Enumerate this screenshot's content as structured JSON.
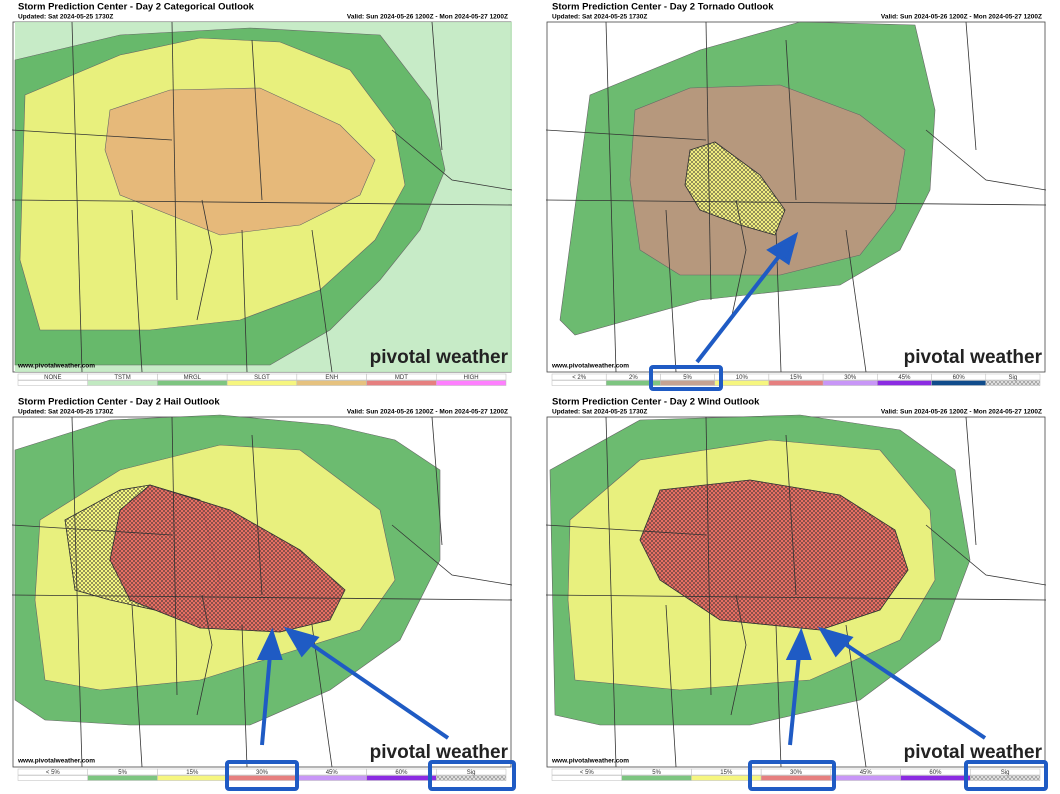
{
  "panels": [
    {
      "title": "Storm Prediction Center - Day 2 Categorical Outlook",
      "updated": "Updated: Sat 2024-05-25 1730Z",
      "valid": "Valid: Sun 2024-05-26 1200Z - Mon 2024-05-27 1200Z",
      "website": "www.pivotalweather.com",
      "watermark": "pivotal weather",
      "legend": [
        {
          "label": "NONE",
          "color": "#ffffff"
        },
        {
          "label": "TSTM",
          "color": "#c1e9c1"
        },
        {
          "label": "MRGL",
          "color": "#7dc580"
        },
        {
          "label": "SLGT",
          "color": "#f6f67f"
        },
        {
          "label": "ENH",
          "color": "#e6c27f"
        },
        {
          "label": "MDT",
          "color": "#e67f7f"
        },
        {
          "label": "HIGH",
          "color": "#fe7ffe"
        }
      ]
    },
    {
      "title": "Storm Prediction Center - Day 2 Tornado Outlook",
      "updated": "Updated: Sat 2024-05-25 1730Z",
      "valid": "Valid: Sun 2024-05-26 1200Z - Mon 2024-05-27 1200Z",
      "website": "www.pivotalweather.com",
      "watermark": "pivotal weather",
      "legend": [
        {
          "label": "< 2%",
          "color": "#ffffff"
        },
        {
          "label": "2%",
          "color": "#7dc580"
        },
        {
          "label": "5%",
          "color": "#c5a393"
        },
        {
          "label": "10%",
          "color": "#f6f67f"
        },
        {
          "label": "15%",
          "color": "#e67f7f"
        },
        {
          "label": "30%",
          "color": "#c896f7"
        },
        {
          "label": "45%",
          "color": "#8b2be2"
        },
        {
          "label": "60%",
          "color": "#104c8c"
        },
        {
          "label": "Sig",
          "color": "hatch"
        }
      ]
    },
    {
      "title": "Storm Prediction Center - Day 2 Hail Outlook",
      "updated": "Updated: Sat 2024-05-25 1730Z",
      "valid": "Valid: Sun 2024-05-26 1200Z - Mon 2024-05-27 1200Z",
      "website": "www.pivotalweather.com",
      "watermark": "pivotal weather",
      "legend": [
        {
          "label": "< 5%",
          "color": "#ffffff"
        },
        {
          "label": "5%",
          "color": "#7dc580"
        },
        {
          "label": "15%",
          "color": "#f6f67f"
        },
        {
          "label": "30%",
          "color": "#e67f7f"
        },
        {
          "label": "45%",
          "color": "#c896f7"
        },
        {
          "label": "60%",
          "color": "#8b2be2"
        },
        {
          "label": "Sig",
          "color": "hatch"
        }
      ]
    },
    {
      "title": "Storm Prediction Center - Day 2 Wind Outlook",
      "updated": "Updated: Sat 2024-05-25 1730Z",
      "valid": "Valid: Sun 2024-05-26 1200Z - Mon 2024-05-27 1200Z",
      "website": "www.pivotalweather.com",
      "watermark": "pivotal weather",
      "legend": [
        {
          "label": "< 5%",
          "color": "#ffffff"
        },
        {
          "label": "5%",
          "color": "#7dc580"
        },
        {
          "label": "15%",
          "color": "#f6f67f"
        },
        {
          "label": "30%",
          "color": "#e67f7f"
        },
        {
          "label": "45%",
          "color": "#c896f7"
        },
        {
          "label": "60%",
          "color": "#8b2be2"
        },
        {
          "label": "Sig",
          "color": "hatch"
        }
      ]
    }
  ]
}
